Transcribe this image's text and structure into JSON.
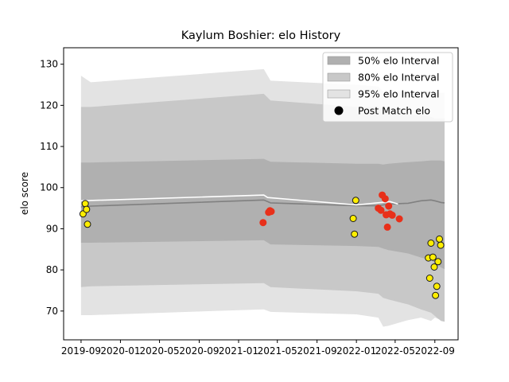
{
  "chart_data": {
    "type": "scatter",
    "title": "Kaylum Boshier: elo History",
    "ylabel": "elo score",
    "xlabel": "",
    "xlim": [
      "2019-07-09",
      "2022-11-12"
    ],
    "ylim": [
      63,
      134
    ],
    "y_ticks": [
      70,
      80,
      90,
      100,
      110,
      120,
      130
    ],
    "x_ticks": [
      "2019-09",
      "2020-01",
      "2020-05",
      "2020-09",
      "2021-01",
      "2021-05",
      "2021-09",
      "2022-01",
      "2022-05",
      "2022-09"
    ],
    "legend_position": "top-right",
    "legend": [
      {
        "label": "50% elo Interval",
        "color": "#b0b0b0",
        "kind": "band"
      },
      {
        "label": "80% elo Interval",
        "color": "#c8c8c8",
        "kind": "band"
      },
      {
        "label": "95% elo Interval",
        "color": "#e3e3e3",
        "kind": "band"
      },
      {
        "label": "Post Match elo",
        "color": "#000000",
        "kind": "marker"
      }
    ],
    "colors": {
      "band50": "#b0b0b0",
      "band80": "#c8c8c8",
      "band95": "#e3e3e3",
      "mean_line": "#808080",
      "post_line": "#ffffff",
      "marker_yellow": "#ffee00",
      "marker_red": "#e8301a",
      "marker_edge_dark": "#1a1a1a",
      "marker_edge_red": "#e8301a"
    },
    "bands": {
      "x": [
        "2019-09-01",
        "2019-10-01",
        "2021-03-20",
        "2021-04-10",
        "2022-01-01",
        "2022-03-10",
        "2022-03-25",
        "2022-04-10",
        "2022-06-10",
        "2022-07-20",
        "2022-08-20",
        "2022-09-01",
        "2022-09-20",
        "2022-10-01"
      ],
      "mean": [
        95.3,
        95.5,
        97.0,
        96.3,
        95.6,
        95.6,
        95.8,
        96.0,
        96.2,
        96.8,
        97.0,
        96.8,
        96.4,
        96.3
      ],
      "p50_low": [
        86.6,
        86.6,
        87.2,
        86.2,
        85.8,
        85.6,
        85.2,
        84.8,
        84.0,
        83.0,
        82.4,
        81.6,
        80.6,
        80.2
      ],
      "p50_high": [
        106.1,
        106.1,
        107.0,
        106.3,
        105.8,
        105.8,
        105.6,
        105.8,
        106.2,
        106.4,
        106.6,
        106.6,
        106.6,
        106.4
      ],
      "p80_low": [
        75.8,
        76.0,
        76.8,
        75.8,
        74.8,
        74.2,
        73.2,
        72.8,
        71.6,
        70.4,
        69.6,
        68.8,
        67.6,
        67.4
      ],
      "p80_high": [
        119.6,
        119.6,
        122.8,
        121.2,
        119.6,
        119.6,
        118.6,
        118.6,
        117.8,
        117.6,
        117.2,
        116.8,
        116.8,
        116.8
      ],
      "p95_low": [
        69.0,
        69.0,
        70.4,
        69.8,
        69.2,
        68.4,
        66.2,
        66.4,
        67.8,
        68.4,
        67.6,
        68.4,
        67.8,
        67.8
      ],
      "p95_high": [
        127.2,
        125.6,
        128.8,
        126.0,
        125.0,
        124.6,
        123.2,
        123.6,
        123.4,
        123.2,
        123.2,
        123.0,
        123.0,
        123.0
      ]
    },
    "post_match_line": {
      "x": [
        "2019-09-01",
        "2021-03-20",
        "2021-04-01",
        "2022-01-01",
        "2022-04-15",
        "2022-05-10"
      ],
      "y": [
        96.8,
        98.2,
        97.6,
        95.8,
        96.6,
        96.0
      ]
    },
    "points": [
      {
        "x": "2019-09-07",
        "y": 93.6,
        "result": "yellow"
      },
      {
        "x": "2019-09-14",
        "y": 96.1,
        "result": "yellow"
      },
      {
        "x": "2019-09-18",
        "y": 94.7,
        "result": "yellow"
      },
      {
        "x": "2019-09-21",
        "y": 91.1,
        "result": "yellow"
      },
      {
        "x": "2021-03-18",
        "y": 91.5,
        "result": "red"
      },
      {
        "x": "2021-04-04",
        "y": 94.0,
        "result": "red"
      },
      {
        "x": "2021-04-08",
        "y": 94.4,
        "result": "red"
      },
      {
        "x": "2021-04-12",
        "y": 94.2,
        "result": "red"
      },
      {
        "x": "2021-12-22",
        "y": 92.5,
        "result": "yellow"
      },
      {
        "x": "2021-12-26",
        "y": 88.7,
        "result": "yellow"
      },
      {
        "x": "2021-12-30",
        "y": 96.9,
        "result": "yellow"
      },
      {
        "x": "2022-03-10",
        "y": 95.0,
        "result": "red"
      },
      {
        "x": "2022-03-18",
        "y": 94.5,
        "result": "red"
      },
      {
        "x": "2022-03-22",
        "y": 98.2,
        "result": "red"
      },
      {
        "x": "2022-03-31",
        "y": 97.3,
        "result": "red"
      },
      {
        "x": "2022-04-03",
        "y": 93.4,
        "result": "red"
      },
      {
        "x": "2022-04-07",
        "y": 90.4,
        "result": "red"
      },
      {
        "x": "2022-04-11",
        "y": 95.5,
        "result": "red"
      },
      {
        "x": "2022-04-15",
        "y": 93.6,
        "result": "red"
      },
      {
        "x": "2022-04-22",
        "y": 93.3,
        "result": "red"
      },
      {
        "x": "2022-05-14",
        "y": 92.4,
        "result": "red"
      },
      {
        "x": "2022-08-12",
        "y": 82.9,
        "result": "yellow"
      },
      {
        "x": "2022-08-16",
        "y": 78.0,
        "result": "yellow"
      },
      {
        "x": "2022-08-20",
        "y": 86.5,
        "result": "yellow"
      },
      {
        "x": "2022-08-26",
        "y": 83.1,
        "result": "yellow"
      },
      {
        "x": "2022-08-30",
        "y": 80.7,
        "result": "yellow"
      },
      {
        "x": "2022-09-03",
        "y": 73.8,
        "result": "yellow"
      },
      {
        "x": "2022-09-07",
        "y": 76.0,
        "result": "yellow"
      },
      {
        "x": "2022-09-11",
        "y": 82.0,
        "result": "yellow"
      },
      {
        "x": "2022-09-15",
        "y": 87.5,
        "result": "yellow"
      },
      {
        "x": "2022-09-19",
        "y": 86.0,
        "result": "yellow"
      }
    ]
  }
}
